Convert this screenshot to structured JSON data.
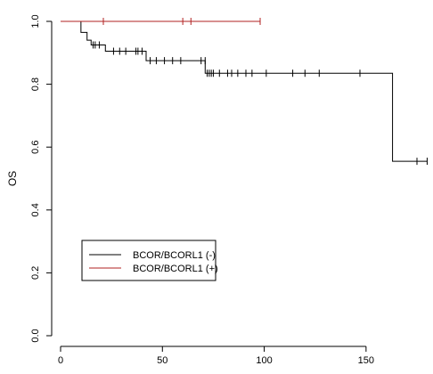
{
  "chart_data": {
    "type": "line",
    "subtype": "kaplan-meier",
    "title": "",
    "xlabel": "",
    "ylabel": "OS",
    "xlim": [
      0,
      180
    ],
    "ylim": [
      0.0,
      1.0
    ],
    "x_ticks": [
      0,
      50,
      100,
      150
    ],
    "y_ticks": [
      0.0,
      0.2,
      0.4,
      0.6,
      0.8,
      1.0
    ],
    "x_tick_labels": [
      "0",
      "50",
      "100",
      "150"
    ],
    "y_tick_labels": [
      "0.0",
      "0.2",
      "0.4",
      "0.6",
      "0.8",
      "1.0"
    ],
    "grid": false,
    "legend_position": "bottom-left",
    "series": [
      {
        "name": "BCOR/BCORL1 (-)",
        "color": "#000000",
        "steps": [
          [
            0,
            1.0
          ],
          [
            10,
            0.965
          ],
          [
            13,
            0.94
          ],
          [
            15,
            0.925
          ],
          [
            22,
            0.905
          ],
          [
            42,
            0.875
          ],
          [
            71,
            0.835
          ],
          [
            163,
            0.555
          ],
          [
            180,
            0.555
          ]
        ],
        "censored": [
          [
            16,
            0.925
          ],
          [
            17,
            0.925
          ],
          [
            19,
            0.925
          ],
          [
            26,
            0.905
          ],
          [
            29,
            0.905
          ],
          [
            32,
            0.905
          ],
          [
            37,
            0.905
          ],
          [
            38,
            0.905
          ],
          [
            40,
            0.905
          ],
          [
            44,
            0.875
          ],
          [
            47,
            0.875
          ],
          [
            51,
            0.875
          ],
          [
            55,
            0.875
          ],
          [
            59,
            0.875
          ],
          [
            69,
            0.875
          ],
          [
            71,
            0.875
          ],
          [
            72,
            0.835
          ],
          [
            73,
            0.835
          ],
          [
            74,
            0.835
          ],
          [
            75,
            0.835
          ],
          [
            78,
            0.835
          ],
          [
            82,
            0.835
          ],
          [
            84,
            0.835
          ],
          [
            87,
            0.835
          ],
          [
            91,
            0.835
          ],
          [
            94,
            0.835
          ],
          [
            101,
            0.835
          ],
          [
            114,
            0.835
          ],
          [
            120,
            0.835
          ],
          [
            127,
            0.835
          ],
          [
            147,
            0.835
          ],
          [
            175,
            0.555
          ],
          [
            180,
            0.555
          ]
        ]
      },
      {
        "name": "BCOR/BCORL1 (+)",
        "color": "#b22222",
        "steps": [
          [
            0,
            1.0
          ],
          [
            98,
            1.0
          ]
        ],
        "censored": [
          [
            21,
            1.0
          ],
          [
            60,
            1.0
          ],
          [
            64,
            1.0
          ],
          [
            98,
            1.0
          ]
        ]
      }
    ]
  }
}
